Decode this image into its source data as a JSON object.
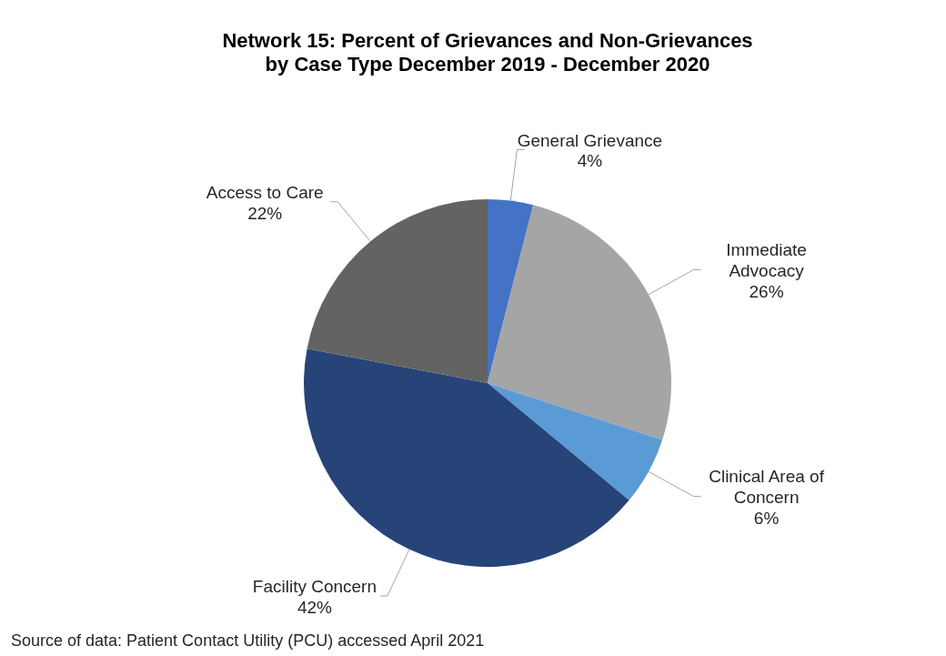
{
  "chart_data": {
    "type": "pie",
    "title": "Network 15: Percent of Grievances and Non-Grievances by Case Type December 2019 - December 2020",
    "categories": [
      "General Grievance",
      "Immediate Advocacy",
      "Clinical Area of Concern",
      "Facility Concern",
      "Access to Care"
    ],
    "values": [
      4,
      26,
      6,
      42,
      22
    ],
    "colors": [
      "#4472c4",
      "#a5a5a5",
      "#5b9bd5",
      "#264478",
      "#636363"
    ],
    "value_labels": [
      "4%",
      "26%",
      "6%",
      "42%",
      "22%"
    ],
    "annotations": [
      "Source of data:  Patient Contact Utility (PCU) accessed April 2021"
    ]
  }
}
